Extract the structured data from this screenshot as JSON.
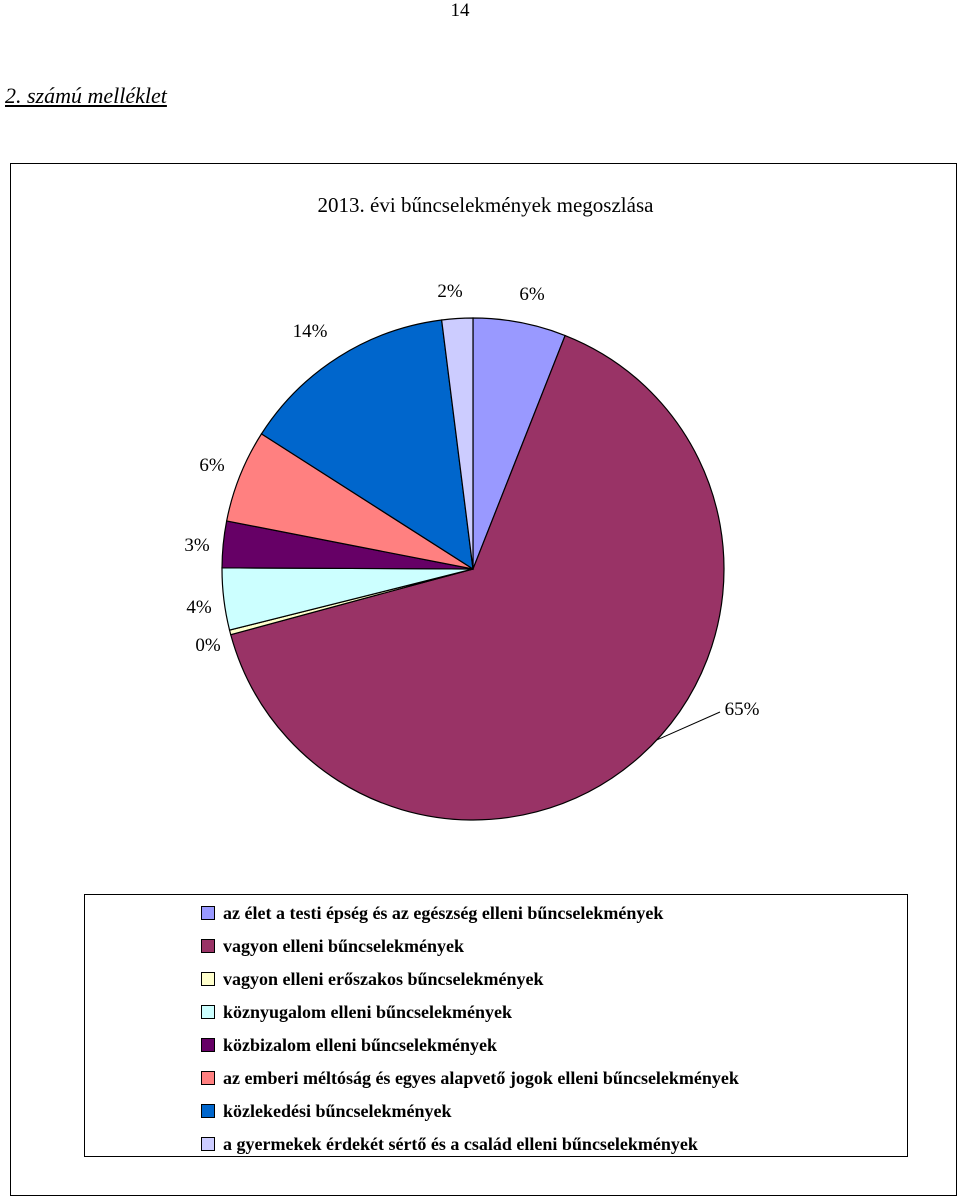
{
  "page": {
    "number": "14",
    "annex_title": "2. számú melléklet"
  },
  "chart_data": {
    "type": "pie",
    "title": "2013. évi bűncselekmények megoszlása",
    "legend_position": "bottom",
    "slices": [
      {
        "label": "az élet a testi épség és az egészség elleni bűncselekmények",
        "value": 6,
        "value_label": "6%",
        "color": "#9999FF"
      },
      {
        "label": "vagyon elleni bűncselekmények",
        "value": 65,
        "value_label": "65%",
        "color": "#993366"
      },
      {
        "label": "vagyon elleni erőszakos bűncselekmények",
        "value": 0.3,
        "value_label": "0%",
        "color": "#FFFFCC"
      },
      {
        "label": "köznyugalom elleni bűncselekmények",
        "value": 4,
        "value_label": "4%",
        "color": "#CCFFFF"
      },
      {
        "label": "közbizalom elleni bűncselekmények",
        "value": 3,
        "value_label": "3%",
        "color": "#660066"
      },
      {
        "label": "az emberi méltóság és egyes alapvető jogok elleni bűncselekmények",
        "value": 6,
        "value_label": "6%",
        "color": "#FF8080"
      },
      {
        "label": "közlekedési bűncselekmények",
        "value": 14,
        "value_label": "14%",
        "color": "#0066CC"
      },
      {
        "label": "a gyermekek érdekét sértő és a család elleni bűncselekmények",
        "value": 2,
        "value_label": "2%",
        "color": "#CCCCFF"
      }
    ]
  }
}
